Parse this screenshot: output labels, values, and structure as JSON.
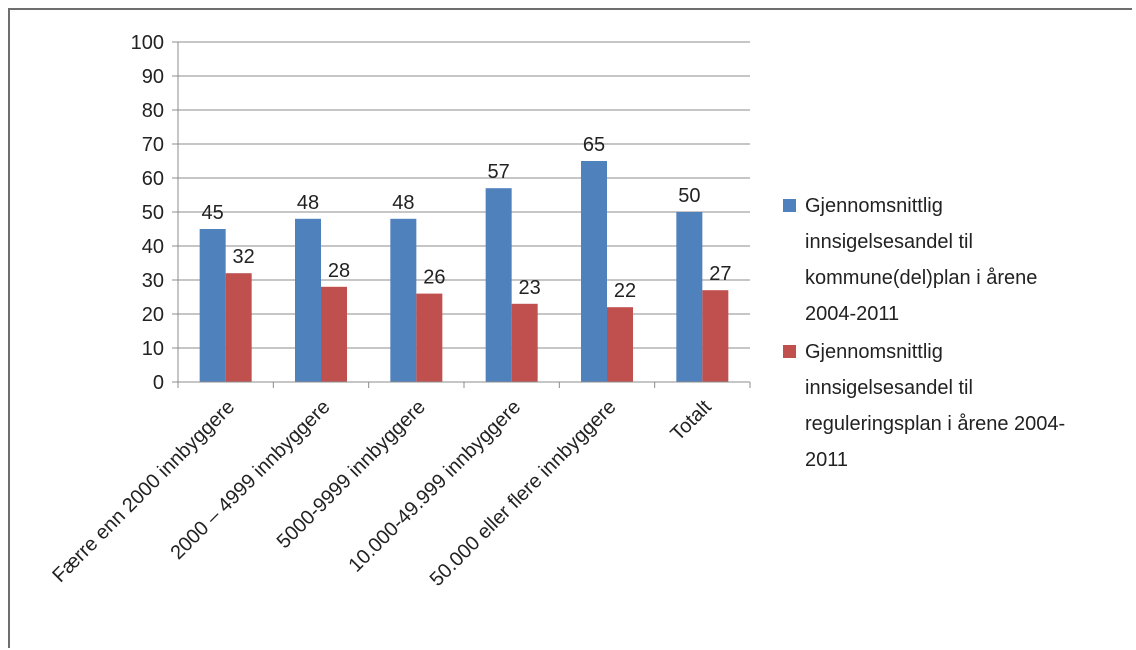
{
  "chart_data": {
    "type": "bar",
    "categories": [
      "Færre enn 2000 innbyggere",
      "2000 – 4999 innbyggere",
      "5000-9999 innbyggere",
      "10.000-49.999 innbyggere",
      "50.000 eller flere innbyggere",
      "Totalt"
    ],
    "series": [
      {
        "name": "Gjennomsnittlig innsigelsesandel til kommune(del)plan i årene 2004-2011",
        "legend_lines": [
          "Gjennomsnittlig",
          "innsigelsesandel til",
          "kommune(del)plan i årene",
          "2004-2011"
        ],
        "color": "#4f81bd",
        "values": [
          45,
          48,
          48,
          57,
          65,
          50
        ]
      },
      {
        "name": "Gjennomsnittlig innsigelsesandel til reguleringsplan i årene 2004-2011",
        "legend_lines": [
          "Gjennomsnittlig",
          "innsigelsesandel til",
          "reguleringsplan i årene 2004-",
          "2011"
        ],
        "color": "#c0504d",
        "values": [
          32,
          28,
          26,
          23,
          22,
          27
        ]
      }
    ],
    "ylim": [
      0,
      100
    ],
    "yticks": [
      0,
      10,
      20,
      30,
      40,
      50,
      60,
      70,
      80,
      90,
      100
    ],
    "grid": true,
    "legend_position": "right",
    "title": "",
    "xlabel": "",
    "ylabel": ""
  }
}
